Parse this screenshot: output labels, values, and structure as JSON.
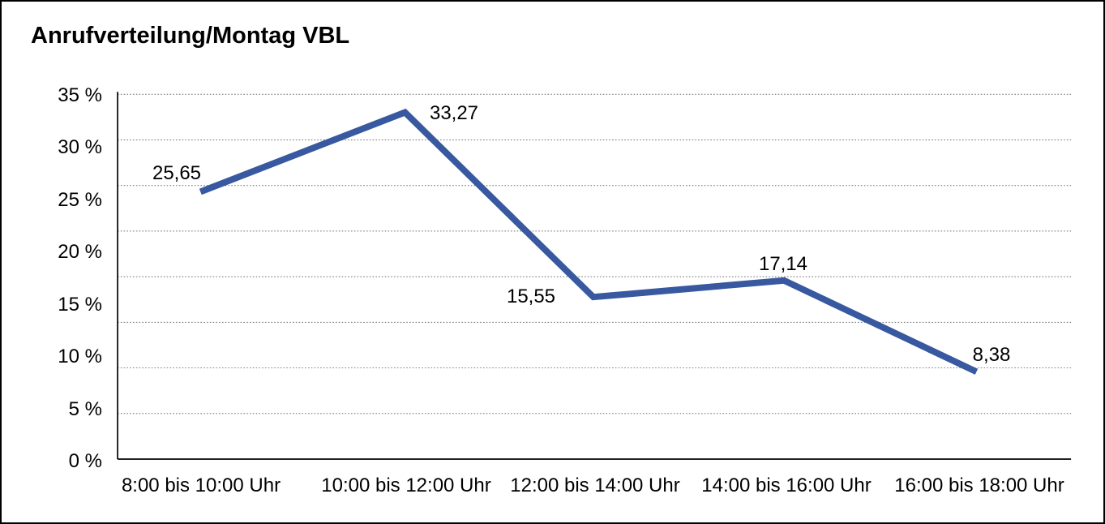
{
  "chart_data": {
    "type": "line",
    "title": "Anrufverteilung/Montag VBL",
    "categories": [
      "8:00 bis 10:00 Uhr",
      "10:00 bis 12:00 Uhr",
      "12:00 bis 14:00 Uhr",
      "14:00 bis 16:00 Uhr",
      "16:00 bis 18:00 Uhr"
    ],
    "series": [
      {
        "name": "Anrufverteilung Montag VBL",
        "values": [
          25.65,
          33.27,
          15.55,
          17.14,
          8.38
        ]
      }
    ],
    "point_labels": [
      "25,65",
      "33,27",
      "15,55",
      "17,14",
      "8,38"
    ],
    "xlabel": "",
    "ylabel": "",
    "ylim": [
      0,
      35
    ],
    "y_tick_labels": [
      "35 %",
      "30 %",
      "25 %",
      "20 %",
      "15 %",
      "10 %",
      "5 %",
      "0 %"
    ],
    "gridline_count": 9,
    "grid": "dotted-horizontal",
    "legend": "none",
    "colors": {
      "line": "#3858A0",
      "axis": "#000000",
      "gridline": "#6e6e6e",
      "text": "#000000",
      "background": "#ffffff",
      "frame_border": "#000000"
    }
  }
}
